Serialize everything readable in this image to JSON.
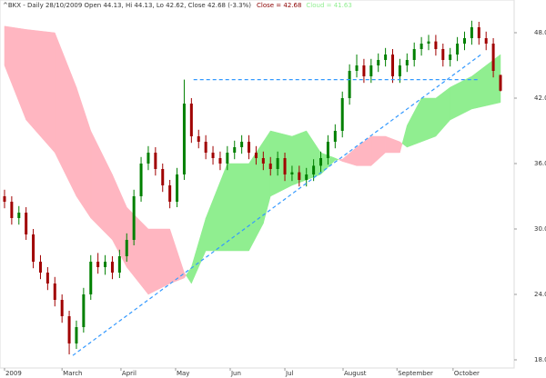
{
  "chart_data": {
    "type": "candlestick",
    "title": "^BKX - Daily 28/10/2009 Open 44.13, Hi 44.13, Lo 42.62, Close 42.68 (-3.3%)",
    "legend": [
      {
        "name": "Close = 42.68",
        "color": "#8b0000"
      },
      {
        "name": "Cloud = 41.63",
        "color": "#90ee90"
      }
    ],
    "up_color": "#008000",
    "down_color": "#a00000",
    "x": [
      0,
      1,
      2,
      3,
      4,
      5,
      6,
      7,
      8,
      9,
      10,
      11,
      12,
      13,
      14,
      15,
      16,
      17,
      18,
      19,
      20,
      21,
      22,
      23,
      24,
      25,
      26,
      27,
      28,
      29,
      30,
      31,
      32,
      33,
      34,
      35,
      36,
      37,
      38,
      39,
      40,
      41,
      42,
      43,
      44,
      45,
      46,
      47,
      48,
      49,
      50,
      51,
      52,
      53,
      54,
      55,
      56,
      57,
      58,
      59,
      60,
      61,
      62,
      63,
      64,
      65,
      66,
      67,
      68,
      69
    ],
    "open": [
      33,
      32.5,
      31,
      31.5,
      29.5,
      27,
      26,
      25,
      23.5,
      22,
      19.5,
      21,
      24,
      27,
      26.5,
      27,
      26,
      27.5,
      29,
      33,
      36,
      37,
      35.5,
      34,
      32.5,
      35,
      41.5,
      38.5,
      38,
      37,
      36.5,
      36,
      37,
      37.5,
      38,
      37,
      36.5,
      36,
      35.5,
      36.5,
      35,
      35.2,
      34.5,
      35,
      35.8,
      36.5,
      38,
      39,
      42,
      44.5,
      45,
      44,
      45,
      45.5,
      46,
      44,
      45,
      45.5,
      46.5,
      47,
      47.2,
      46.5,
      45.5,
      46,
      47,
      47.5,
      48.5,
      47.5,
      47,
      44.13
    ],
    "high": [
      33.6,
      33,
      32.1,
      32,
      30,
      27.6,
      26.5,
      25.6,
      24,
      22.5,
      21.6,
      24.6,
      27.6,
      27.8,
      27.6,
      27.5,
      28.1,
      29.6,
      33.6,
      36.6,
      37.6,
      37.5,
      36,
      34.5,
      35.6,
      43.7,
      42,
      39.1,
      38.6,
      37.6,
      37.1,
      37.6,
      38.1,
      38.6,
      38.6,
      37.6,
      37.1,
      36.6,
      37.1,
      37,
      35.8,
      35.8,
      35.6,
      36.4,
      37.1,
      38.6,
      39.6,
      42.6,
      45.1,
      46,
      45.6,
      45.6,
      46.1,
      46.6,
      46.5,
      45.6,
      46.1,
      47.1,
      47.6,
      47.8,
      47.8,
      47,
      46.6,
      47.6,
      48.1,
      49.1,
      49,
      48.1,
      47.5,
      44.13
    ],
    "low": [
      31.9,
      30.4,
      30.4,
      29,
      26.4,
      25.4,
      24.4,
      22.9,
      21.4,
      18.5,
      19,
      20.5,
      23.5,
      25.9,
      25.8,
      25.4,
      25.5,
      27,
      28.5,
      32.5,
      35.4,
      34.9,
      33.4,
      31.9,
      32,
      34.5,
      37.9,
      37.4,
      36.4,
      35.9,
      35.4,
      35.4,
      36.4,
      36.9,
      36.4,
      35.9,
      35.4,
      34.9,
      34.9,
      34.4,
      34.4,
      33.9,
      33.9,
      34.4,
      35.2,
      35.9,
      37.4,
      38.4,
      41.4,
      43.9,
      43.4,
      43.4,
      44.4,
      44.9,
      43.4,
      43.4,
      44.4,
      44.9,
      45.9,
      46.4,
      45.9,
      44.9,
      44.9,
      45.4,
      46.4,
      46.9,
      46.9,
      46.4,
      43.9,
      42.62
    ],
    "close": [
      32.5,
      31,
      31.5,
      29.5,
      27,
      26,
      25,
      23.5,
      22,
      19.5,
      21,
      24,
      27,
      26.5,
      27,
      26,
      27.5,
      29,
      33,
      36,
      37,
      35.5,
      34,
      32.5,
      35,
      41.5,
      38.5,
      38,
      37,
      36.5,
      36,
      37,
      37.5,
      38,
      37,
      36.5,
      36,
      35.5,
      36.5,
      35,
      35.2,
      34.5,
      35,
      35.8,
      36.5,
      38,
      39,
      42,
      44.5,
      45,
      44,
      45,
      45.5,
      46,
      44,
      45,
      45.5,
      46.5,
      47,
      47.2,
      46.5,
      45.5,
      46,
      47,
      47.5,
      48.5,
      47.5,
      47,
      44.5,
      42.68
    ],
    "cloud": {
      "x": [
        0,
        3,
        7,
        10,
        12,
        15,
        17,
        20,
        23,
        25,
        26,
        28,
        31,
        34,
        36,
        37,
        40,
        42,
        44,
        46,
        47,
        49,
        51,
        53,
        55,
        56,
        58,
        60,
        62,
        65,
        69
      ],
      "span_a": [
        45,
        40,
        37,
        33,
        31,
        29,
        26.5,
        24,
        25,
        25.5,
        26.5,
        31,
        36,
        36,
        38,
        39,
        38.5,
        39,
        37,
        36.5,
        36.2,
        35.8,
        35.8,
        37,
        37,
        39.5,
        42,
        42,
        43,
        44,
        46
      ],
      "span_b": [
        48.6,
        48.3,
        48,
        43,
        39,
        35,
        32,
        30,
        30,
        26,
        25,
        28,
        28,
        28,
        30.5,
        33,
        34,
        34.5,
        35,
        36.3,
        36.4,
        37.5,
        38.5,
        38.5,
        38,
        37.5,
        38,
        38.5,
        40,
        41,
        41.6
      ],
      "bull_color": "#90ee90",
      "bear_color": "#ffb6c1"
    },
    "lines": [
      {
        "x": [
          9.5,
          66.5
        ],
        "values": [
          18.4,
          46.1
        ],
        "color": "#3399ff"
      },
      {
        "x": [
          26.3,
          65.8
        ],
        "values": [
          43.7,
          43.7
        ],
        "color": "#3399ff"
      }
    ],
    "xlim": [
      -0.63,
      70.9
    ],
    "xticks": [
      {
        "value": 0,
        "label": "2009"
      },
      {
        "value": 8,
        "label": "March"
      },
      {
        "value": 16.2,
        "label": "April"
      },
      {
        "value": 23.8,
        "label": "May"
      },
      {
        "value": 31.4,
        "label": "Jun"
      },
      {
        "value": 39,
        "label": "Jul"
      },
      {
        "value": 47.1,
        "label": "August"
      },
      {
        "value": 54.6,
        "label": "September"
      },
      {
        "value": 62.4,
        "label": "October"
      }
    ],
    "ylim": [
      17.25,
      51.0
    ],
    "yticks": [
      {
        "value": 18,
        "label": "18.0"
      },
      {
        "value": 24,
        "label": "24.0"
      },
      {
        "value": 30,
        "label": "30.0"
      },
      {
        "value": 36,
        "label": "36.0"
      },
      {
        "value": 42,
        "label": "42.0"
      },
      {
        "value": 48,
        "label": "48.0"
      }
    ]
  }
}
